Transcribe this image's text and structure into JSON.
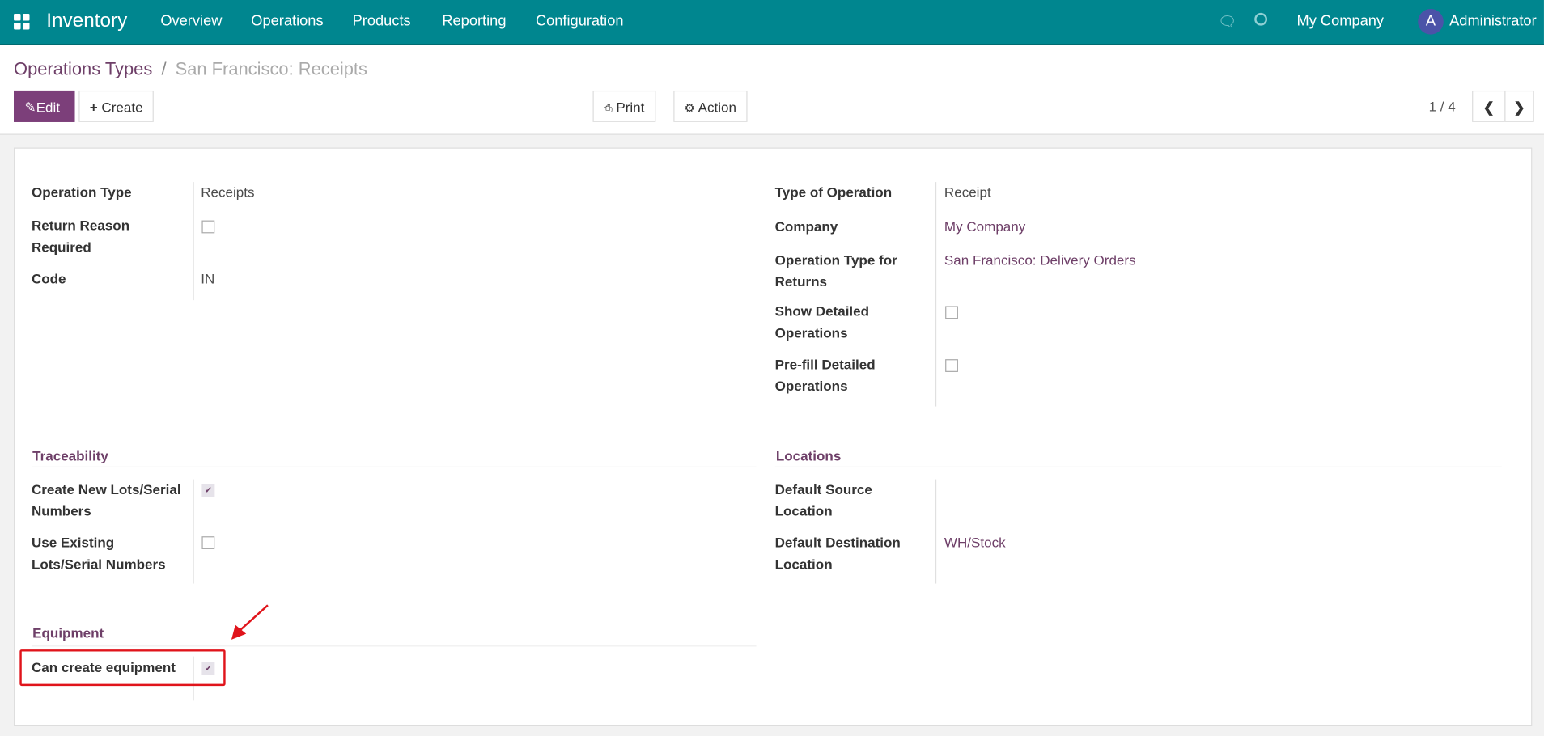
{
  "navbar": {
    "app": "Inventory",
    "menu": [
      "Overview",
      "Operations",
      "Products",
      "Reporting",
      "Configuration"
    ],
    "company": "My Company",
    "avatar": "A",
    "user": "Administrator",
    "icons": [
      "apps-grid-icon",
      "chat-icon",
      "clock-icon"
    ],
    "color": "#00868f"
  },
  "breadcrumb": {
    "parent": "Operations Types",
    "separator": "/",
    "current": "San Francisco: Receipts"
  },
  "toolbar": {
    "edit": "Edit",
    "create": "Create",
    "print": "Print",
    "action": "Action",
    "pager": "1 / 4"
  },
  "form": {
    "left": [
      {
        "label": "Operation Type",
        "value": "Receipts"
      },
      {
        "label": "Return Reason Required",
        "checked": false
      },
      {
        "label": "Code",
        "value": "IN"
      }
    ],
    "right": [
      {
        "label": "Type of Operation",
        "value": "Receipt"
      },
      {
        "label": "Company",
        "value": "My Company"
      },
      {
        "label": "Operation Type for Returns",
        "value": "San Francisco: Delivery Orders"
      },
      {
        "label": "Show Detailed Operations",
        "checked": false
      },
      {
        "label": "Pre-fill Detailed Operations",
        "checked": false
      }
    ],
    "traceability": {
      "title": "Traceability",
      "rows": [
        {
          "label": "Create New Lots/Serial Numbers",
          "checked": true
        },
        {
          "label": "Use Existing Lots/Serial Numbers",
          "checked": false
        }
      ]
    },
    "locations": {
      "title": "Locations",
      "rows": [
        {
          "label": "Default Source Location",
          "value": ""
        },
        {
          "label": "Default Destination Location",
          "value": "WH/Stock"
        }
      ]
    },
    "equipment": {
      "title": "Equipment",
      "rows": [
        {
          "label": "Can create equipment",
          "checked": true
        }
      ]
    }
  },
  "annotation_color": "#e0141b"
}
